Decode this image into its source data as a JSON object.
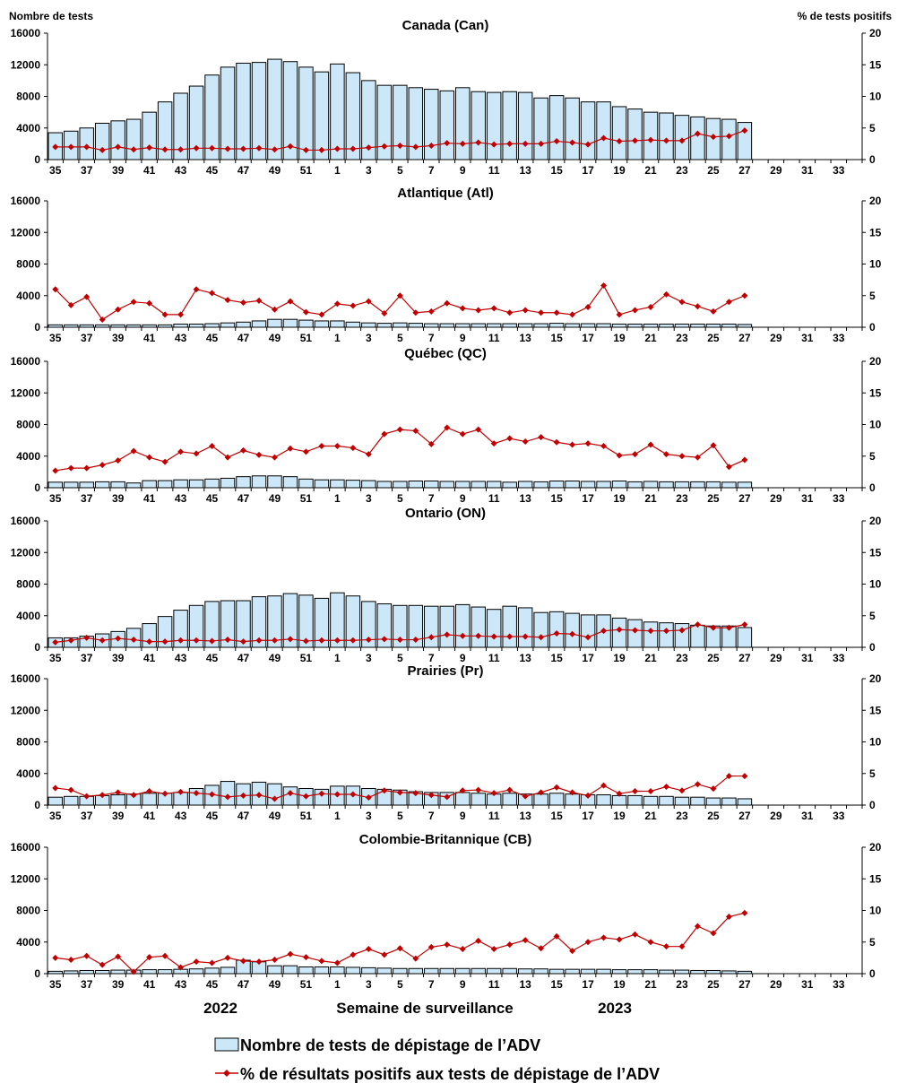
{
  "y_left_label": "Nombre de tests",
  "y_right_label": "% de tests positifs",
  "footer": {
    "year_left": "2022",
    "year_right": "2023",
    "xlabel": "Semaine de surveillance"
  },
  "legend": {
    "bars": "Nombre de tests de dépistage de l’ADV",
    "line": "% de résultats positifs aux tests de dépistage de l’ADV"
  },
  "colors": {
    "bar_fill": "#cce8f8",
    "bar_stroke": "#000000",
    "line": "#c00000",
    "marker": "#c00000"
  },
  "chart_data": [
    {
      "type": "bar+line",
      "title": "Canada (Can)",
      "xlabel": "Semaine de surveillance",
      "ylabel": "Nombre de tests",
      "y2label": "% de tests positifs",
      "ylim": [
        0,
        16000
      ],
      "y2lim": [
        0,
        20
      ],
      "y_ticks": [
        "0",
        "4000",
        "8000",
        "12000",
        "16000"
      ],
      "y2_ticks": [
        "0",
        "5",
        "10",
        "15",
        "20"
      ],
      "weeks": [
        "35",
        "36",
        "37",
        "38",
        "39",
        "40",
        "41",
        "42",
        "43",
        "44",
        "45",
        "46",
        "47",
        "48",
        "49",
        "50",
        "51",
        "52",
        "1",
        "2",
        "3",
        "4",
        "5",
        "6",
        "7",
        "8",
        "9",
        "10",
        "11",
        "12",
        "13",
        "14",
        "15",
        "16",
        "17",
        "18",
        "19",
        "20",
        "21",
        "22",
        "23",
        "24",
        "25",
        "26",
        "27",
        "28",
        "29",
        "30",
        "31",
        "32",
        "33",
        "34"
      ],
      "x_tick_labels": [
        "35",
        "37",
        "39",
        "41",
        "43",
        "45",
        "47",
        "49",
        "51",
        "1",
        "3",
        "5",
        "7",
        "9",
        "11",
        "13",
        "15",
        "17",
        "19",
        "21",
        "23",
        "25",
        "27",
        "29",
        "31",
        "33"
      ],
      "tests": [
        3400,
        3600,
        4000,
        4600,
        4900,
        5100,
        6000,
        7300,
        8400,
        9300,
        10700,
        11700,
        12200,
        12300,
        12700,
        12400,
        11700,
        11100,
        12100,
        11000,
        10000,
        9400,
        9400,
        9100,
        8900,
        8700,
        9100,
        8600,
        8500,
        8600,
        8500,
        7800,
        8100,
        7800,
        7300,
        7300,
        6700,
        6400,
        6000,
        5900,
        5600,
        5400,
        5200,
        5100,
        4700,
        null,
        null,
        null,
        null,
        null,
        null,
        null
      ],
      "pct_positive": [
        2.0,
        2.0,
        2.0,
        1.5,
        2.0,
        1.6,
        1.9,
        1.6,
        1.6,
        1.8,
        1.8,
        1.7,
        1.7,
        1.8,
        1.6,
        2.1,
        1.5,
        1.5,
        1.7,
        1.7,
        1.9,
        2.1,
        2.2,
        2.0,
        2.2,
        2.6,
        2.5,
        2.7,
        2.4,
        2.5,
        2.5,
        2.5,
        2.9,
        2.7,
        2.4,
        3.4,
        2.9,
        3.0,
        3.1,
        3.0,
        3.0,
        4.1,
        3.6,
        3.7,
        4.6,
        null,
        null,
        null,
        null,
        null,
        null,
        null
      ]
    },
    {
      "type": "bar+line",
      "title": "Atlantique (Atl)",
      "xlabel": "Semaine de surveillance",
      "ylabel": "Nombre de tests",
      "y2label": "% de tests positifs",
      "ylim": [
        0,
        16000
      ],
      "y2lim": [
        0,
        20
      ],
      "y_ticks": [
        "0",
        "4000",
        "8000",
        "12000",
        "16000"
      ],
      "y2_ticks": [
        "0",
        "5",
        "10",
        "15",
        "20"
      ],
      "weeks": [
        "35",
        "36",
        "37",
        "38",
        "39",
        "40",
        "41",
        "42",
        "43",
        "44",
        "45",
        "46",
        "47",
        "48",
        "49",
        "50",
        "51",
        "52",
        "1",
        "2",
        "3",
        "4",
        "5",
        "6",
        "7",
        "8",
        "9",
        "10",
        "11",
        "12",
        "13",
        "14",
        "15",
        "16",
        "17",
        "18",
        "19",
        "20",
        "21",
        "22",
        "23",
        "24",
        "25",
        "26",
        "27",
        "28",
        "29",
        "30",
        "31",
        "32",
        "33",
        "34"
      ],
      "x_tick_labels": [
        "35",
        "37",
        "39",
        "41",
        "43",
        "45",
        "47",
        "49",
        "51",
        "1",
        "3",
        "5",
        "7",
        "9",
        "11",
        "13",
        "15",
        "17",
        "19",
        "21",
        "23",
        "25",
        "27",
        "29",
        "31",
        "33"
      ],
      "tests": [
        300,
        300,
        300,
        300,
        300,
        300,
        300,
        300,
        400,
        400,
        450,
        550,
        650,
        800,
        1000,
        1000,
        900,
        800,
        800,
        650,
        550,
        500,
        550,
        500,
        450,
        450,
        450,
        450,
        450,
        450,
        450,
        450,
        500,
        450,
        450,
        450,
        400,
        400,
        400,
        400,
        400,
        400,
        400,
        400,
        350,
        null,
        null,
        null,
        null,
        null,
        null,
        null
      ],
      "pct_positive": [
        6.0,
        3.5,
        4.8,
        1.2,
        2.8,
        4.0,
        3.8,
        2.0,
        2.0,
        6.0,
        5.4,
        4.3,
        3.9,
        4.2,
        2.8,
        4.1,
        2.4,
        2.0,
        3.7,
        3.4,
        4.1,
        2.2,
        5.0,
        2.3,
        2.5,
        3.8,
        3.0,
        2.7,
        3.0,
        2.3,
        2.7,
        2.3,
        2.3,
        2.0,
        3.2,
        6.6,
        2.0,
        2.7,
        3.2,
        5.2,
        4.0,
        3.3,
        2.5,
        4.0,
        5.0,
        null,
        null,
        null,
        null,
        null,
        null,
        null
      ]
    },
    {
      "type": "bar+line",
      "title": "Québec (QC)",
      "xlabel": "Semaine de surveillance",
      "ylabel": "Nombre de tests",
      "y2label": "% de tests positifs",
      "ylim": [
        0,
        16000
      ],
      "y2lim": [
        0,
        20
      ],
      "y_ticks": [
        "0",
        "4000",
        "8000",
        "12000",
        "16000"
      ],
      "y2_ticks": [
        "0",
        "5",
        "10",
        "15",
        "20"
      ],
      "weeks": [
        "35",
        "36",
        "37",
        "38",
        "39",
        "40",
        "41",
        "42",
        "43",
        "44",
        "45",
        "46",
        "47",
        "48",
        "49",
        "50",
        "51",
        "52",
        "1",
        "2",
        "3",
        "4",
        "5",
        "6",
        "7",
        "8",
        "9",
        "10",
        "11",
        "12",
        "13",
        "14",
        "15",
        "16",
        "17",
        "18",
        "19",
        "20",
        "21",
        "22",
        "23",
        "24",
        "25",
        "26",
        "27",
        "28",
        "29",
        "30",
        "31",
        "32",
        "33",
        "34"
      ],
      "x_tick_labels": [
        "35",
        "37",
        "39",
        "41",
        "43",
        "45",
        "47",
        "49",
        "51",
        "1",
        "3",
        "5",
        "7",
        "9",
        "11",
        "13",
        "15",
        "17",
        "19",
        "21",
        "23",
        "25",
        "27",
        "29",
        "31",
        "33"
      ],
      "tests": [
        700,
        700,
        700,
        750,
        750,
        600,
        900,
        900,
        1000,
        1000,
        1100,
        1200,
        1400,
        1500,
        1500,
        1400,
        1100,
        1000,
        1000,
        950,
        900,
        800,
        800,
        850,
        850,
        800,
        800,
        800,
        800,
        700,
        800,
        750,
        850,
        850,
        800,
        800,
        850,
        750,
        800,
        750,
        750,
        750,
        750,
        700,
        700,
        null,
        null,
        null,
        null,
        null,
        null,
        null
      ],
      "pct_positive": [
        2.7,
        3.1,
        3.1,
        3.6,
        4.3,
        5.8,
        4.8,
        4.1,
        5.7,
        5.4,
        6.6,
        4.8,
        5.9,
        5.2,
        4.8,
        6.2,
        5.7,
        6.6,
        6.6,
        6.3,
        5.3,
        8.5,
        9.2,
        9.0,
        6.9,
        9.5,
        8.5,
        9.2,
        7.0,
        7.8,
        7.3,
        8.0,
        7.2,
        6.8,
        7.0,
        6.6,
        5.1,
        5.3,
        6.8,
        5.3,
        5.0,
        4.8,
        6.7,
        3.3,
        4.4,
        null,
        null,
        null,
        null,
        null,
        null,
        null
      ]
    },
    {
      "type": "bar+line",
      "title": "Ontario (ON)",
      "xlabel": "Semaine de surveillance",
      "ylabel": "Nombre de tests",
      "y2label": "% de tests positifs",
      "ylim": [
        0,
        16000
      ],
      "y2lim": [
        0,
        20
      ],
      "y_ticks": [
        "0",
        "4000",
        "8000",
        "12000",
        "16000"
      ],
      "y2_ticks": [
        "0",
        "5",
        "10",
        "15",
        "20"
      ],
      "weeks": [
        "35",
        "36",
        "37",
        "38",
        "39",
        "40",
        "41",
        "42",
        "43",
        "44",
        "45",
        "46",
        "47",
        "48",
        "49",
        "50",
        "51",
        "52",
        "1",
        "2",
        "3",
        "4",
        "5",
        "6",
        "7",
        "8",
        "9",
        "10",
        "11",
        "12",
        "13",
        "14",
        "15",
        "16",
        "17",
        "18",
        "19",
        "20",
        "21",
        "22",
        "23",
        "24",
        "25",
        "26",
        "27",
        "28",
        "29",
        "30",
        "31",
        "32",
        "33",
        "34"
      ],
      "x_tick_labels": [
        "35",
        "37",
        "39",
        "41",
        "43",
        "45",
        "47",
        "49",
        "51",
        "1",
        "3",
        "5",
        "7",
        "9",
        "11",
        "13",
        "15",
        "17",
        "19",
        "21",
        "23",
        "25",
        "27",
        "29",
        "31",
        "33"
      ],
      "tests": [
        1200,
        1200,
        1400,
        1700,
        2000,
        2400,
        3000,
        3900,
        4700,
        5300,
        5800,
        5900,
        5900,
        6400,
        6500,
        6800,
        6600,
        6200,
        6900,
        6500,
        5800,
        5500,
        5300,
        5300,
        5200,
        5200,
        5400,
        5100,
        4800,
        5200,
        5000,
        4400,
        4500,
        4300,
        4100,
        4100,
        3700,
        3500,
        3200,
        3100,
        3000,
        2800,
        2700,
        2700,
        2500,
        null,
        null,
        null,
        null,
        null,
        null,
        null
      ],
      "pct_positive": [
        0.8,
        1.1,
        1.5,
        1.1,
        1.4,
        1.2,
        0.9,
        0.9,
        1.1,
        1.1,
        1.0,
        1.2,
        0.9,
        1.1,
        1.1,
        1.3,
        1.0,
        1.1,
        1.1,
        1.1,
        1.2,
        1.3,
        1.2,
        1.2,
        1.6,
        2.0,
        1.8,
        1.8,
        1.7,
        1.7,
        1.7,
        1.6,
        2.2,
        2.1,
        1.6,
        2.6,
        2.8,
        2.7,
        2.6,
        2.6,
        2.7,
        3.6,
        3.1,
        3.1,
        3.6,
        null,
        null,
        null,
        null,
        null,
        null,
        null
      ]
    },
    {
      "type": "bar+line",
      "title": "Prairies (Pr)",
      "xlabel": "Semaine de surveillance",
      "ylabel": "Nombre de tests",
      "y2label": "% de tests positifs",
      "ylim": [
        0,
        16000
      ],
      "y2lim": [
        0,
        20
      ],
      "y_ticks": [
        "0",
        "4000",
        "8000",
        "12000",
        "16000"
      ],
      "y2_ticks": [
        "0",
        "5",
        "10",
        "15",
        "20"
      ],
      "weeks": [
        "35",
        "36",
        "37",
        "38",
        "39",
        "40",
        "41",
        "42",
        "43",
        "44",
        "45",
        "46",
        "47",
        "48",
        "49",
        "50",
        "51",
        "52",
        "1",
        "2",
        "3",
        "4",
        "5",
        "6",
        "7",
        "8",
        "9",
        "10",
        "11",
        "12",
        "13",
        "14",
        "15",
        "16",
        "17",
        "18",
        "19",
        "20",
        "21",
        "22",
        "23",
        "24",
        "25",
        "26",
        "27",
        "28",
        "29",
        "30",
        "31",
        "32",
        "33",
        "34"
      ],
      "x_tick_labels": [
        "35",
        "37",
        "39",
        "41",
        "43",
        "45",
        "47",
        "49",
        "51",
        "1",
        "3",
        "5",
        "7",
        "9",
        "11",
        "13",
        "15",
        "17",
        "19",
        "21",
        "23",
        "25",
        "27",
        "29",
        "31",
        "33"
      ],
      "tests": [
        1000,
        1100,
        1100,
        1200,
        1300,
        1400,
        1500,
        1500,
        1600,
        2100,
        2500,
        3000,
        2700,
        2900,
        2700,
        2300,
        2100,
        2000,
        2400,
        2400,
        2100,
        2000,
        1900,
        1700,
        1600,
        1600,
        1600,
        1500,
        1400,
        1500,
        1400,
        1400,
        1500,
        1400,
        1300,
        1300,
        1200,
        1200,
        1100,
        1100,
        1000,
        1000,
        900,
        900,
        800,
        null,
        null,
        null,
        null,
        null,
        null,
        null
      ],
      "pct_positive": [
        2.7,
        2.4,
        1.4,
        1.6,
        2.0,
        1.6,
        2.2,
        1.8,
        2.1,
        1.9,
        1.7,
        1.3,
        1.5,
        1.6,
        1.0,
        1.9,
        1.4,
        1.8,
        1.7,
        1.7,
        1.2,
        2.3,
        2.0,
        1.9,
        1.6,
        1.3,
        2.3,
        2.4,
        1.9,
        2.4,
        1.4,
        2.0,
        2.8,
        2.0,
        1.5,
        3.1,
        1.8,
        2.2,
        2.2,
        2.9,
        2.3,
        3.3,
        2.6,
        4.6,
        4.6,
        null,
        null,
        null,
        null,
        null,
        null,
        null
      ]
    },
    {
      "type": "bar+line",
      "title": "Colombie-Britannique (CB)",
      "xlabel": "Semaine de surveillance",
      "ylabel": "Nombre de tests",
      "y2label": "% de tests positifs",
      "ylim": [
        0,
        16000
      ],
      "y2lim": [
        0,
        20
      ],
      "y_ticks": [
        "0",
        "4000",
        "8000",
        "12000",
        "16000"
      ],
      "y2_ticks": [
        "0",
        "5",
        "10",
        "15",
        "20"
      ],
      "weeks": [
        "35",
        "36",
        "37",
        "38",
        "39",
        "40",
        "41",
        "42",
        "43",
        "44",
        "45",
        "46",
        "47",
        "48",
        "49",
        "50",
        "51",
        "52",
        "1",
        "2",
        "3",
        "4",
        "5",
        "6",
        "7",
        "8",
        "9",
        "10",
        "11",
        "12",
        "13",
        "14",
        "15",
        "16",
        "17",
        "18",
        "19",
        "20",
        "21",
        "22",
        "23",
        "24",
        "25",
        "26",
        "27",
        "28",
        "29",
        "30",
        "31",
        "32",
        "33",
        "34"
      ],
      "x_tick_labels": [
        "35",
        "37",
        "39",
        "41",
        "43",
        "45",
        "47",
        "49",
        "51",
        "1",
        "3",
        "5",
        "7",
        "9",
        "11",
        "13",
        "15",
        "17",
        "19",
        "21",
        "23",
        "25",
        "27",
        "29",
        "31",
        "33"
      ],
      "tests": [
        300,
        350,
        400,
        400,
        450,
        450,
        500,
        500,
        550,
        600,
        700,
        800,
        1700,
        1500,
        1000,
        1000,
        850,
        850,
        850,
        800,
        750,
        700,
        650,
        650,
        650,
        650,
        650,
        650,
        650,
        650,
        600,
        600,
        550,
        550,
        550,
        550,
        500,
        500,
        500,
        450,
        450,
        400,
        400,
        350,
        300,
        null,
        null,
        null,
        null,
        null,
        null,
        null
      ],
      "pct_positive": [
        2.5,
        2.2,
        2.8,
        1.4,
        2.7,
        0.3,
        2.6,
        2.8,
        1.0,
        1.9,
        1.7,
        2.5,
        2.0,
        1.9,
        2.2,
        3.1,
        2.6,
        2.0,
        1.7,
        3.0,
        3.9,
        3.0,
        4.0,
        2.4,
        4.2,
        4.6,
        3.9,
        5.2,
        3.9,
        4.6,
        5.3,
        4.0,
        5.9,
        3.6,
        5.0,
        5.7,
        5.4,
        6.2,
        5.0,
        4.3,
        4.3,
        7.5,
        6.4,
        9.0,
        9.6,
        null,
        null,
        null,
        null,
        null,
        null,
        null
      ]
    }
  ]
}
